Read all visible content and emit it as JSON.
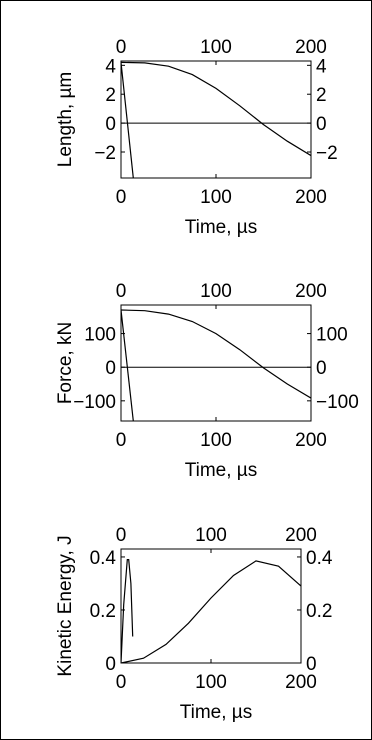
{
  "chart_data": [
    {
      "type": "line",
      "xlabel": "Time, µs",
      "ylabel": "Length, µm",
      "xlim": [
        0,
        200
      ],
      "ylim": [
        -3.8,
        4.3
      ],
      "x_ticks": [
        0,
        100,
        200
      ],
      "y_ticks": [
        4,
        2,
        0,
        -2
      ],
      "x_tick_labels": [
        "0",
        "100",
        "200"
      ],
      "y_tick_labels": [
        "4",
        "2",
        "0",
        "−2"
      ],
      "grid": false,
      "zero_line": true,
      "series": [
        {
          "points": [
            [
              0,
              4.2
            ],
            [
              25,
              4.17
            ],
            [
              50,
              3.94
            ],
            [
              75,
              3.36
            ],
            [
              100,
              2.4
            ],
            [
              125,
              1.2
            ],
            [
              150,
              -0.1
            ],
            [
              175,
              -1.25
            ],
            [
              200,
              -2.25
            ]
          ]
        },
        {
          "points": [
            [
              0,
              4.2
            ],
            [
              13,
              -3.8
            ]
          ]
        }
      ]
    },
    {
      "type": "line",
      "xlabel": "Time, µs",
      "ylabel": "Force, kN",
      "xlim": [
        0,
        200
      ],
      "ylim": [
        -160,
        185
      ],
      "x_ticks": [
        0,
        100,
        200
      ],
      "y_ticks": [
        100,
        0,
        -100
      ],
      "x_tick_labels": [
        "0",
        "100",
        "200"
      ],
      "y_tick_labels": [
        "100",
        "0",
        "−100"
      ],
      "grid": false,
      "zero_line": true,
      "series": [
        {
          "points": [
            [
              0,
              170
            ],
            [
              25,
              168
            ],
            [
              50,
              158
            ],
            [
              75,
              136
            ],
            [
              100,
              100
            ],
            [
              125,
              52
            ],
            [
              150,
              -2
            ],
            [
              175,
              -50
            ],
            [
              200,
              -92
            ]
          ]
        },
        {
          "points": [
            [
              0,
              170
            ],
            [
              13,
              -160
            ]
          ]
        }
      ]
    },
    {
      "type": "line",
      "xlabel": "Time, µs",
      "ylabel": "Kinetic Energy, J",
      "xlim": [
        0,
        200
      ],
      "ylim": [
        0,
        0.43
      ],
      "x_ticks": [
        0,
        100,
        200
      ],
      "y_ticks": [
        0.4,
        0.2,
        0
      ],
      "x_tick_labels": [
        "0",
        "100",
        "200"
      ],
      "y_tick_labels": [
        "0.4",
        "0.2",
        "0"
      ],
      "grid": false,
      "zero_line": false,
      "series": [
        {
          "points": [
            [
              0,
              0
            ],
            [
              25,
              0.018
            ],
            [
              50,
              0.07
            ],
            [
              75,
              0.15
            ],
            [
              100,
              0.245
            ],
            [
              125,
              0.33
            ],
            [
              150,
              0.385
            ],
            [
              175,
              0.365
            ],
            [
              200,
              0.29
            ]
          ]
        },
        {
          "points": [
            [
              0,
              0
            ],
            [
              3,
              0.22
            ],
            [
              7,
              0.39
            ],
            [
              8.5,
              0.39
            ],
            [
              11,
              0.3
            ],
            [
              13,
              0.1
            ]
          ]
        }
      ]
    }
  ]
}
